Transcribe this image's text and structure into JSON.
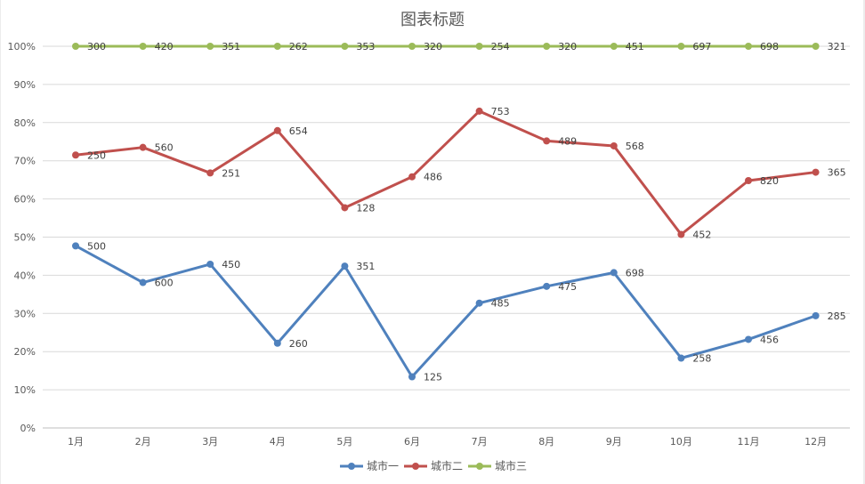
{
  "chart_data": {
    "type": "line",
    "title": "图表标题",
    "categories": [
      "1月",
      "2月",
      "3月",
      "4月",
      "5月",
      "6月",
      "7月",
      "8月",
      "9月",
      "10月",
      "11月",
      "12月"
    ],
    "y_ticks": [
      "0%",
      "10%",
      "20%",
      "30%",
      "40%",
      "50%",
      "60%",
      "70%",
      "80%",
      "90%",
      "100%"
    ],
    "ylim": [
      0,
      1
    ],
    "y_format": "percent",
    "stacking": "percent-stacked",
    "grid": true,
    "legend_position": "bottom",
    "series": [
      {
        "name": "城市一",
        "color": "#4f81bd",
        "values": [
          500,
          600,
          450,
          260,
          351,
          125,
          485,
          475,
          698,
          258,
          456,
          285
        ],
        "plotted_percent": [
          0.477,
          0.381,
          0.429,
          0.222,
          0.424,
          0.134,
          0.327,
          0.371,
          0.407,
          0.183,
          0.232,
          0.294
        ]
      },
      {
        "name": "城市二",
        "color": "#c0504d",
        "values": [
          250,
          560,
          251,
          654,
          128,
          486,
          753,
          489,
          568,
          452,
          820,
          365
        ],
        "plotted_percent": [
          0.715,
          0.735,
          0.668,
          0.779,
          0.577,
          0.658,
          0.83,
          0.752,
          0.739,
          0.507,
          0.648,
          0.67
        ]
      },
      {
        "name": "城市三",
        "color": "#9bbb59",
        "values": [
          300,
          420,
          351,
          262,
          353,
          320,
          254,
          320,
          451,
          697,
          698,
          321
        ],
        "plotted_percent": [
          1,
          1,
          1,
          1,
          1,
          1,
          1,
          1,
          1,
          1,
          1,
          1
        ]
      }
    ]
  }
}
